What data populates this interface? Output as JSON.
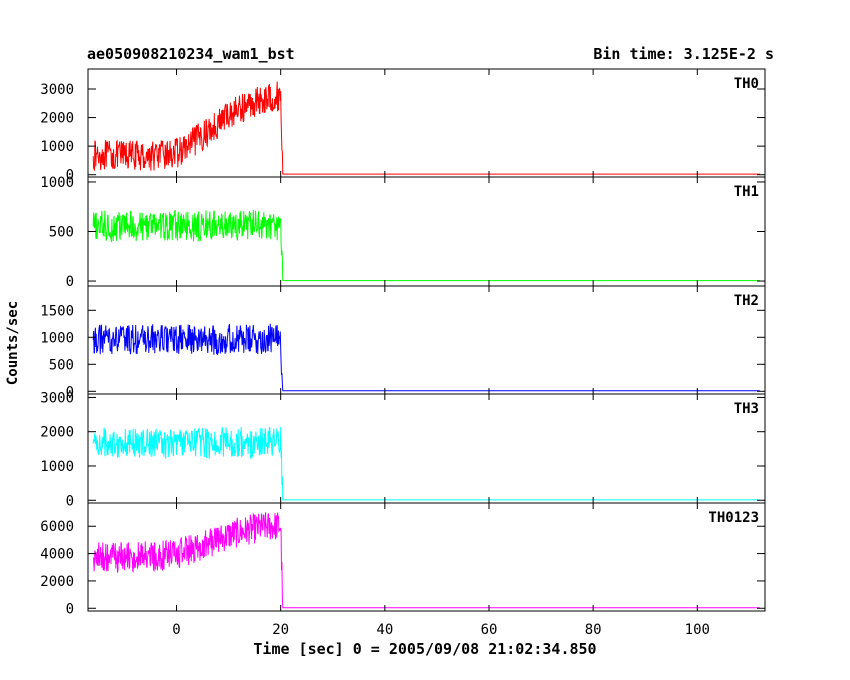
{
  "chart_data": {
    "type": "line",
    "title": "ae050908210234_wam1_bst",
    "subtitle": "Bin time: 3.125E-2 s",
    "xlabel": "Time [sec] 0 = 2005/09/08 21:02:34.850",
    "ylabel": "Counts/sec",
    "xlim": [
      -17,
      113
    ],
    "xticks": [
      0,
      20,
      40,
      60,
      80,
      100
    ],
    "grid": false,
    "panels": [
      {
        "name": "TH0",
        "color": "#ff0000",
        "ylim": [
          -80,
          3700
        ],
        "yticks": [
          0,
          1000,
          2000,
          3000
        ],
        "x": [
          -16,
          -14,
          -12,
          -10,
          -8,
          -6,
          -4,
          -2,
          0,
          2,
          4,
          6,
          8,
          10,
          12,
          14,
          16,
          18,
          20,
          20.4,
          22,
          40,
          60,
          80,
          100,
          112
        ],
        "y": [
          650,
          700,
          650,
          700,
          680,
          650,
          680,
          700,
          750,
          950,
          1250,
          1500,
          1800,
          2100,
          2300,
          2450,
          2600,
          2700,
          2750,
          20,
          20,
          20,
          20,
          20,
          20,
          20
        ]
      },
      {
        "name": "TH1",
        "color": "#00ff00",
        "ylim": [
          -50,
          1050
        ],
        "yticks": [
          0,
          500,
          1000
        ],
        "x": [
          -16,
          -14,
          -12,
          -10,
          -8,
          -6,
          -4,
          -2,
          0,
          2,
          4,
          6,
          8,
          10,
          12,
          14,
          16,
          18,
          20,
          20.4,
          22,
          40,
          60,
          80,
          100,
          112
        ],
        "y": [
          550,
          560,
          540,
          560,
          550,
          560,
          570,
          550,
          560,
          560,
          550,
          570,
          560,
          550,
          560,
          570,
          560,
          550,
          560,
          5,
          5,
          5,
          5,
          5,
          5,
          5
        ]
      },
      {
        "name": "TH2",
        "color": "#0000ff",
        "ylim": [
          -50,
          1950
        ],
        "yticks": [
          0,
          500,
          1000,
          1500
        ],
        "x": [
          -16,
          -14,
          -12,
          -10,
          -8,
          -6,
          -4,
          -2,
          0,
          2,
          4,
          6,
          8,
          10,
          12,
          14,
          16,
          18,
          20,
          20.4,
          22,
          40,
          60,
          80,
          100,
          112
        ],
        "y": [
          950,
          960,
          950,
          970,
          960,
          950,
          970,
          960,
          950,
          960,
          970,
          960,
          950,
          970,
          960,
          950,
          960,
          970,
          960,
          10,
          10,
          10,
          10,
          10,
          10,
          10
        ]
      },
      {
        "name": "TH3",
        "color": "#00ffff",
        "ylim": [
          -80,
          3100
        ],
        "yticks": [
          0,
          1000,
          2000,
          3000
        ],
        "x": [
          -16,
          -14,
          -12,
          -10,
          -8,
          -6,
          -4,
          -2,
          0,
          2,
          4,
          6,
          8,
          10,
          12,
          14,
          16,
          18,
          20,
          20.4,
          22,
          40,
          60,
          80,
          100,
          112
        ],
        "y": [
          1650,
          1700,
          1680,
          1700,
          1650,
          1700,
          1680,
          1650,
          1700,
          1680,
          1700,
          1650,
          1700,
          1680,
          1700,
          1650,
          1700,
          1680,
          1700,
          10,
          10,
          10,
          10,
          10,
          10,
          10
        ]
      },
      {
        "name": "TH0123",
        "color": "#ff00ff",
        "ylim": [
          -200,
          7700
        ],
        "yticks": [
          0,
          2000,
          4000,
          6000
        ],
        "x": [
          -16,
          -14,
          -12,
          -10,
          -8,
          -6,
          -4,
          -2,
          0,
          2,
          4,
          6,
          8,
          10,
          12,
          14,
          16,
          18,
          20,
          20.4,
          22,
          40,
          60,
          80,
          100,
          112
        ],
        "y": [
          3700,
          3750,
          3700,
          3800,
          3750,
          3800,
          3800,
          3850,
          3950,
          4200,
          4500,
          4750,
          5050,
          5350,
          5550,
          5750,
          5900,
          6000,
          6050,
          40,
          40,
          40,
          40,
          40,
          40,
          40
        ]
      }
    ]
  }
}
